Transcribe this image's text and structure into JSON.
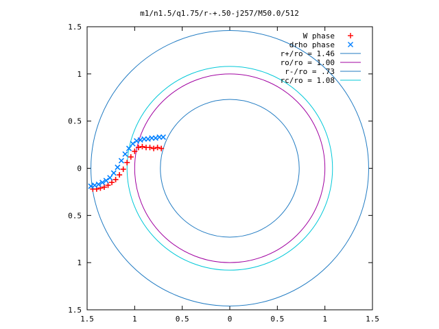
{
  "chart_data": {
    "type": "scatter",
    "title": "m1/n1.5/q1.75/r-+.50-j257/M50.0/512",
    "xlabel": "",
    "ylabel": "",
    "xlim": [
      -1.5,
      1.5
    ],
    "ylim": [
      -1.5,
      1.5
    ],
    "x_ticks": [
      "1.5",
      "1",
      "0.5",
      "0",
      "0.5",
      "1",
      "1.5"
    ],
    "y_ticks": [
      "1.5",
      "1",
      "0.5",
      "0",
      "0.5",
      "1",
      "1.5"
    ],
    "grid": false,
    "legend_position": "top-right",
    "series": [
      {
        "name": "W phase",
        "kind": "points",
        "marker": "+",
        "color": "#ff0000",
        "x": [
          -1.44,
          -1.4,
          -1.36,
          -1.32,
          -1.28,
          -1.24,
          -1.2,
          -1.16,
          -1.12,
          -1.08,
          -1.04,
          -1.0,
          -0.96,
          -0.92,
          -0.88,
          -0.84,
          -0.8,
          -0.76,
          -0.72
        ],
        "y": [
          -0.22,
          -0.22,
          -0.21,
          -0.2,
          -0.18,
          -0.15,
          -0.12,
          -0.07,
          -0.01,
          0.06,
          0.12,
          0.18,
          0.22,
          0.23,
          0.22,
          0.22,
          0.21,
          0.22,
          0.21
        ]
      },
      {
        "name": "drho phase",
        "kind": "points",
        "marker": "x",
        "color": "#0080ff",
        "x": [
          -1.46,
          -1.42,
          -1.38,
          -1.34,
          -1.3,
          -1.26,
          -1.22,
          -1.18,
          -1.14,
          -1.1,
          -1.06,
          -1.02,
          -0.98,
          -0.94,
          -0.9,
          -0.86,
          -0.82,
          -0.78,
          -0.74,
          -0.7
        ],
        "y": [
          -0.19,
          -0.18,
          -0.17,
          -0.15,
          -0.13,
          -0.1,
          -0.05,
          0.01,
          0.08,
          0.15,
          0.21,
          0.26,
          0.29,
          0.3,
          0.31,
          0.31,
          0.32,
          0.32,
          0.33,
          0.33
        ]
      },
      {
        "name": "r+/ro = 1.46",
        "kind": "circle",
        "radius": 1.46,
        "color": "#1f7ac2"
      },
      {
        "name": "ro/ro = 1.00",
        "kind": "circle",
        "radius": 1.0,
        "color": "#a000a0"
      },
      {
        "name": "r-/ro = .73",
        "kind": "circle",
        "radius": 0.73,
        "color": "#1f7ac2"
      },
      {
        "name": "rc/ro = 1.08",
        "kind": "circle",
        "radius": 1.08,
        "color": "#00c8d8"
      }
    ]
  }
}
